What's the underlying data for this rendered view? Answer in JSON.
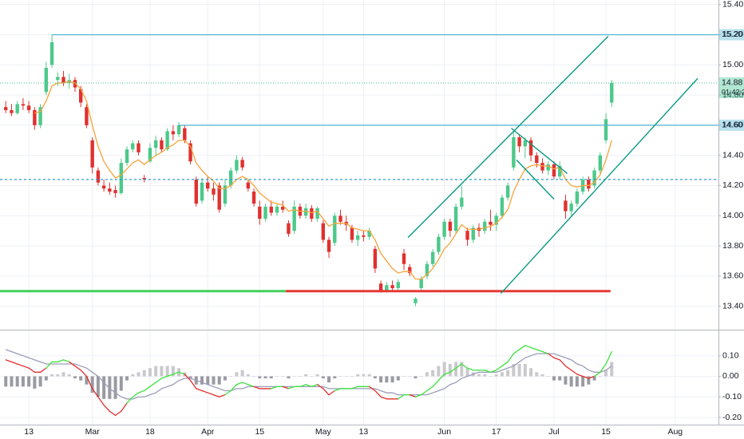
{
  "chart_data": [
    {
      "type": "candlestick",
      "xlim": [
        -1,
        123.5
      ],
      "ylim": [
        13.25,
        15.43
      ],
      "yticks": [
        {
          "value": 13.4,
          "label": "13.40"
        },
        {
          "value": 13.6,
          "label": "13.60"
        },
        {
          "value": 13.8,
          "label": "13.80"
        },
        {
          "value": 14.0,
          "label": "14.00"
        },
        {
          "value": 14.2,
          "label": "14.20"
        },
        {
          "value": 14.4,
          "label": "14.40"
        },
        {
          "value": 14.6,
          "label": "14.60"
        },
        {
          "value": 14.8,
          "label": "14.80"
        },
        {
          "value": 15.0,
          "label": "15.00"
        },
        {
          "value": 15.2,
          "label": "15.20"
        },
        {
          "value": 15.4,
          "label": "15.40"
        }
      ],
      "grid": true,
      "up_color": "#4cc98a",
      "down_color": "#e0302f",
      "ma_color": "#f5a33b",
      "trendline_color": "#089981",
      "candles": [
        [
          14.72,
          14.76,
          14.68,
          14.7
        ],
        [
          14.7,
          14.74,
          14.66,
          14.68
        ],
        [
          14.68,
          14.76,
          14.67,
          14.74
        ],
        [
          14.74,
          14.78,
          14.7,
          14.73
        ],
        [
          14.73,
          14.76,
          14.68,
          14.7
        ],
        [
          14.7,
          14.72,
          14.57,
          14.6
        ],
        [
          14.6,
          14.74,
          14.58,
          14.72
        ],
        [
          14.82,
          15.02,
          14.8,
          14.98
        ],
        [
          15.0,
          15.2,
          14.98,
          15.15
        ],
        [
          14.9,
          14.95,
          14.86,
          14.92
        ],
        [
          14.92,
          14.96,
          14.86,
          14.88
        ],
        [
          14.88,
          14.94,
          14.84,
          14.9
        ],
        [
          14.9,
          14.92,
          14.82,
          14.85
        ],
        [
          14.84,
          14.86,
          14.72,
          14.75
        ],
        [
          14.72,
          14.74,
          14.58,
          14.6
        ],
        [
          14.5,
          14.52,
          14.28,
          14.32
        ],
        [
          14.3,
          14.32,
          14.2,
          14.22
        ],
        [
          14.2,
          14.24,
          14.16,
          14.18
        ],
        [
          14.18,
          14.22,
          14.14,
          14.16
        ],
        [
          14.17,
          14.2,
          14.12,
          14.15
        ],
        [
          14.15,
          14.38,
          14.14,
          14.35
        ],
        [
          14.35,
          14.46,
          14.33,
          14.44
        ],
        [
          14.44,
          14.5,
          14.42,
          14.48
        ],
        [
          14.48,
          14.5,
          14.4,
          14.42
        ],
        [
          14.25,
          14.27,
          14.22,
          14.24
        ],
        [
          14.36,
          14.48,
          14.35,
          14.45
        ],
        [
          14.45,
          14.53,
          14.4,
          14.5
        ],
        [
          14.5,
          14.52,
          14.42,
          14.44
        ],
        [
          14.44,
          14.58,
          14.43,
          14.56
        ],
        [
          14.56,
          14.6,
          14.5,
          14.54
        ],
        [
          14.54,
          14.62,
          14.52,
          14.6
        ],
        [
          14.58,
          14.6,
          14.48,
          14.5
        ],
        [
          14.48,
          14.5,
          14.34,
          14.36
        ],
        [
          14.24,
          14.26,
          14.06,
          14.08
        ],
        [
          14.1,
          14.25,
          14.08,
          14.22
        ],
        [
          14.22,
          14.26,
          14.16,
          14.18
        ],
        [
          14.18,
          14.22,
          14.1,
          14.14
        ],
        [
          14.2,
          14.22,
          14.02,
          14.04
        ],
        [
          14.08,
          14.24,
          14.06,
          14.2
        ],
        [
          14.2,
          14.32,
          14.18,
          14.3
        ],
        [
          14.3,
          14.4,
          14.28,
          14.37
        ],
        [
          14.37,
          14.39,
          14.3,
          14.32
        ],
        [
          14.22,
          14.24,
          14.16,
          14.18
        ],
        [
          14.16,
          14.18,
          14.06,
          14.08
        ],
        [
          14.06,
          14.1,
          13.94,
          13.98
        ],
        [
          13.98,
          14.08,
          13.96,
          14.06
        ],
        [
          14.06,
          14.1,
          14.0,
          14.02
        ],
        [
          14.02,
          14.08,
          14.0,
          14.06
        ],
        [
          14.06,
          14.1,
          14.02,
          14.04
        ],
        [
          13.95,
          13.97,
          13.86,
          13.88
        ],
        [
          13.9,
          14.1,
          13.88,
          14.06
        ],
        [
          14.06,
          14.08,
          13.98,
          14.0
        ],
        [
          14.0,
          14.08,
          13.98,
          14.05
        ],
        [
          14.05,
          14.07,
          13.96,
          13.98
        ],
        [
          13.98,
          14.06,
          13.96,
          14.05
        ],
        [
          13.95,
          13.97,
          13.82,
          13.84
        ],
        [
          13.84,
          13.86,
          13.72,
          13.76
        ],
        [
          13.82,
          14.02,
          13.8,
          14.0
        ],
        [
          14.0,
          14.04,
          13.94,
          13.96
        ],
        [
          13.96,
          14.0,
          13.9,
          13.94
        ],
        [
          13.92,
          13.94,
          13.82,
          13.84
        ],
        [
          13.84,
          13.9,
          13.8,
          13.87
        ],
        [
          13.87,
          13.9,
          13.83,
          13.86
        ],
        [
          13.86,
          13.92,
          13.84,
          13.9
        ],
        [
          13.78,
          13.8,
          13.62,
          13.65
        ],
        [
          13.55,
          13.57,
          13.49,
          13.5
        ],
        [
          13.5,
          13.56,
          13.49,
          13.54
        ],
        [
          13.54,
          13.57,
          13.5,
          13.52
        ],
        [
          13.52,
          13.58,
          13.5,
          13.56
        ],
        [
          13.75,
          13.78,
          13.64,
          13.68
        ],
        [
          13.66,
          13.68,
          13.6,
          13.62
        ],
        [
          13.42,
          13.46,
          13.4,
          13.45
        ],
        [
          13.52,
          13.6,
          13.5,
          13.58
        ],
        [
          13.6,
          13.7,
          13.58,
          13.68
        ],
        [
          13.68,
          13.78,
          13.66,
          13.76
        ],
        [
          13.76,
          13.88,
          13.74,
          13.86
        ],
        [
          13.86,
          13.98,
          13.84,
          13.96
        ],
        [
          13.96,
          13.98,
          13.86,
          13.9
        ],
        [
          13.9,
          14.08,
          13.88,
          14.06
        ],
        [
          14.06,
          14.2,
          14.04,
          14.12
        ],
        [
          13.9,
          13.92,
          13.8,
          13.84
        ],
        [
          13.84,
          13.94,
          13.82,
          13.92
        ],
        [
          13.92,
          13.95,
          13.86,
          13.9
        ],
        [
          13.9,
          13.98,
          13.88,
          13.96
        ],
        [
          13.96,
          14.04,
          13.9,
          13.94
        ],
        [
          13.94,
          14.02,
          13.9,
          14.0
        ],
        [
          14.0,
          14.14,
          13.98,
          14.12
        ],
        [
          14.12,
          14.22,
          14.1,
          14.2
        ],
        [
          14.32,
          14.56,
          14.3,
          14.52
        ],
        [
          14.52,
          14.54,
          14.42,
          14.46
        ],
        [
          14.46,
          14.52,
          14.38,
          14.5
        ],
        [
          14.5,
          14.52,
          14.36,
          14.4
        ],
        [
          14.4,
          14.42,
          14.32,
          14.35
        ],
        [
          14.35,
          14.38,
          14.28,
          14.3
        ],
        [
          14.3,
          14.36,
          14.27,
          14.34
        ],
        [
          14.34,
          14.36,
          14.24,
          14.26
        ],
        [
          14.26,
          14.36,
          14.24,
          14.33
        ],
        [
          14.1,
          14.14,
          13.98,
          14.03
        ],
        [
          14.03,
          14.1,
          14.0,
          14.08
        ],
        [
          14.08,
          14.18,
          14.06,
          14.16
        ],
        [
          14.16,
          14.26,
          14.14,
          14.24
        ],
        [
          14.24,
          14.26,
          14.16,
          14.18
        ],
        [
          14.2,
          14.32,
          14.18,
          14.3
        ],
        [
          14.3,
          14.42,
          14.28,
          14.4
        ],
        [
          14.5,
          14.68,
          14.48,
          14.64
        ],
        [
          14.75,
          14.9,
          14.72,
          14.88
        ]
      ],
      "ma": [
        null,
        null,
        null,
        null,
        null,
        14.68,
        14.69,
        14.76,
        14.86,
        14.88,
        14.88,
        14.89,
        14.88,
        14.84,
        14.76,
        14.6,
        14.46,
        14.36,
        14.3,
        14.25,
        14.27,
        14.31,
        14.35,
        14.37,
        14.34,
        14.37,
        14.4,
        14.42,
        14.45,
        14.47,
        14.5,
        14.5,
        14.46,
        14.35,
        14.3,
        14.26,
        14.23,
        14.18,
        14.18,
        14.2,
        14.24,
        14.26,
        14.24,
        14.2,
        14.15,
        14.12,
        14.09,
        14.08,
        14.07,
        14.03,
        14.04,
        14.03,
        14.03,
        14.02,
        14.03,
        13.98,
        13.93,
        13.95,
        13.95,
        13.95,
        13.92,
        13.91,
        13.9,
        13.9,
        13.84,
        13.75,
        13.7,
        13.65,
        13.62,
        13.63,
        13.63,
        13.58,
        13.58,
        13.61,
        13.65,
        13.71,
        13.78,
        13.82,
        13.88,
        13.94,
        13.91,
        13.91,
        13.91,
        13.92,
        13.93,
        13.95,
        13.99,
        14.04,
        14.16,
        14.24,
        14.31,
        14.33,
        14.34,
        14.33,
        14.33,
        14.31,
        14.32,
        14.24,
        14.2,
        14.19,
        14.2,
        14.2,
        14.22,
        14.27,
        14.37,
        14.5
      ],
      "levels": [
        {
          "value": 15.2,
          "label": "15.20",
          "from": 8,
          "color": "#4fb3d1",
          "dash": "solid"
        },
        {
          "value": 14.88,
          "label": "14.88",
          "countdown": "01:42:2",
          "color": "#3cc48f",
          "dash": "dotted"
        },
        {
          "value": 14.6,
          "label": "14.60",
          "from": 30,
          "color": "#4fb3d1",
          "dash": "solid"
        },
        {
          "value": 14.24,
          "color": "#2b9fd0",
          "dash": "dashed"
        },
        {
          "value": 13.5,
          "to": 48.5,
          "color": "#43d15d",
          "dash": "thick"
        },
        {
          "value": 13.5,
          "from": 48.5,
          "to": 104.8,
          "color": "#e53935",
          "dash": "thick"
        }
      ],
      "trendlines": [
        {
          "x": [
            69.7,
            104.4
          ],
          "y": [
            13.855,
            15.19
          ]
        },
        {
          "x": [
            85.8,
            119.9
          ],
          "y": [
            13.485,
            14.91
          ]
        },
        {
          "x": [
            87.6,
            97.3
          ],
          "y": [
            14.58,
            14.28
          ]
        },
        {
          "x": [
            88.5,
            95.0
          ],
          "y": [
            14.37,
            14.11
          ]
        }
      ]
    },
    {
      "type": "macd",
      "xlim": [
        -1,
        123.5
      ],
      "ylim": [
        -0.235,
        0.223
      ],
      "yticks": [
        {
          "value": -0.2,
          "label": "-0.20"
        },
        {
          "value": -0.1,
          "label": "-0.10"
        },
        {
          "value": 0,
          "label": "0.00"
        },
        {
          "value": 0.1,
          "label": "0.10"
        }
      ],
      "xticks": [
        {
          "value": 4,
          "label": "13"
        },
        {
          "value": 15,
          "label": "Mar"
        },
        {
          "value": 25,
          "label": "18"
        },
        {
          "value": 35,
          "label": "Apr"
        },
        {
          "value": 44,
          "label": "15"
        },
        {
          "value": 55,
          "label": "May"
        },
        {
          "value": 62,
          "label": "13"
        },
        {
          "value": 76,
          "label": "Jun"
        },
        {
          "value": 85,
          "label": "17"
        },
        {
          "value": 95,
          "label": "Jul"
        },
        {
          "value": 104,
          "label": "15"
        },
        {
          "value": 116,
          "label": "Aug"
        }
      ],
      "grid": true,
      "macd_color_above": "#3ee23e",
      "macd_color_below": "#e0302f",
      "signal_color": "#9c9cb8",
      "hist_colors": [
        "#c9c9ce",
        "#9a9aa2"
      ],
      "macd": [
        0.08,
        0.07,
        0.06,
        0.05,
        0.04,
        0.02,
        0.02,
        0.04,
        0.07,
        0.07,
        0.08,
        0.07,
        0.05,
        0.03,
        0.0,
        -0.06,
        -0.1,
        -0.14,
        -0.17,
        -0.19,
        -0.17,
        -0.13,
        -0.1,
        -0.08,
        -0.07,
        -0.05,
        -0.03,
        -0.01,
        0.0,
        0.01,
        0.02,
        0.01,
        -0.02,
        -0.06,
        -0.07,
        -0.08,
        -0.09,
        -0.1,
        -0.09,
        -0.07,
        -0.04,
        -0.03,
        -0.04,
        -0.05,
        -0.06,
        -0.06,
        -0.06,
        -0.05,
        -0.05,
        -0.06,
        -0.05,
        -0.05,
        -0.04,
        -0.05,
        -0.04,
        -0.06,
        -0.09,
        -0.07,
        -0.06,
        -0.06,
        -0.06,
        -0.05,
        -0.05,
        -0.05,
        -0.07,
        -0.1,
        -0.11,
        -0.11,
        -0.11,
        -0.09,
        -0.09,
        -0.1,
        -0.09,
        -0.07,
        -0.05,
        -0.02,
        0.01,
        0.02,
        0.04,
        0.06,
        0.04,
        0.03,
        0.03,
        0.03,
        0.02,
        0.03,
        0.05,
        0.07,
        0.11,
        0.13,
        0.15,
        0.14,
        0.13,
        0.12,
        0.11,
        0.09,
        0.08,
        0.05,
        0.03,
        0.01,
        0.0,
        -0.01,
        0.0,
        0.02,
        0.06,
        0.12
      ],
      "signal": [
        0.13,
        0.12,
        0.11,
        0.1,
        0.09,
        0.08,
        0.07,
        0.06,
        0.06,
        0.06,
        0.06,
        0.06,
        0.06,
        0.05,
        0.04,
        0.02,
        0.0,
        -0.03,
        -0.06,
        -0.08,
        -0.1,
        -0.11,
        -0.11,
        -0.1,
        -0.1,
        -0.09,
        -0.08,
        -0.06,
        -0.05,
        -0.04,
        -0.02,
        -0.01,
        -0.01,
        -0.02,
        -0.03,
        -0.04,
        -0.05,
        -0.06,
        -0.07,
        -0.07,
        -0.06,
        -0.06,
        -0.05,
        -0.05,
        -0.05,
        -0.05,
        -0.05,
        -0.05,
        -0.05,
        -0.05,
        -0.05,
        -0.05,
        -0.05,
        -0.05,
        -0.05,
        -0.05,
        -0.06,
        -0.06,
        -0.06,
        -0.06,
        -0.06,
        -0.06,
        -0.06,
        -0.06,
        -0.06,
        -0.07,
        -0.08,
        -0.08,
        -0.09,
        -0.09,
        -0.09,
        -0.09,
        -0.09,
        -0.09,
        -0.08,
        -0.07,
        -0.06,
        -0.04,
        -0.03,
        -0.01,
        0.0,
        0.01,
        0.02,
        0.02,
        0.02,
        0.02,
        0.03,
        0.04,
        0.05,
        0.07,
        0.09,
        0.1,
        0.11,
        0.11,
        0.11,
        0.11,
        0.1,
        0.09,
        0.08,
        0.06,
        0.05,
        0.03,
        0.02,
        0.02,
        0.03,
        0.05
      ],
      "histogram": [
        -0.05,
        -0.05,
        -0.05,
        -0.05,
        -0.05,
        -0.06,
        -0.05,
        -0.02,
        0.01,
        0.01,
        0.02,
        0.01,
        -0.01,
        -0.02,
        -0.04,
        -0.08,
        -0.1,
        -0.11,
        -0.11,
        -0.11,
        -0.07,
        -0.02,
        0.01,
        0.02,
        0.03,
        0.04,
        0.05,
        0.05,
        0.05,
        0.05,
        0.04,
        0.02,
        -0.01,
        -0.04,
        -0.04,
        -0.04,
        -0.04,
        -0.04,
        -0.02,
        0.0,
        0.02,
        0.03,
        0.01,
        0.0,
        -0.01,
        -0.01,
        -0.01,
        0.0,
        0.0,
        -0.01,
        0.0,
        0.0,
        0.01,
        0.0,
        0.01,
        -0.01,
        -0.03,
        -0.01,
        0.0,
        0.0,
        0.0,
        0.01,
        0.01,
        0.01,
        -0.01,
        -0.03,
        -0.03,
        -0.03,
        -0.02,
        0.0,
        0.0,
        -0.01,
        0.0,
        0.02,
        0.03,
        0.05,
        0.07,
        0.06,
        0.07,
        0.07,
        0.04,
        0.02,
        0.01,
        0.01,
        0.0,
        0.01,
        0.02,
        0.03,
        0.06,
        0.06,
        0.06,
        0.04,
        0.02,
        0.01,
        0.0,
        -0.02,
        -0.02,
        -0.04,
        -0.05,
        -0.05,
        -0.05,
        -0.04,
        -0.02,
        0.0,
        0.03,
        0.07
      ]
    }
  ]
}
